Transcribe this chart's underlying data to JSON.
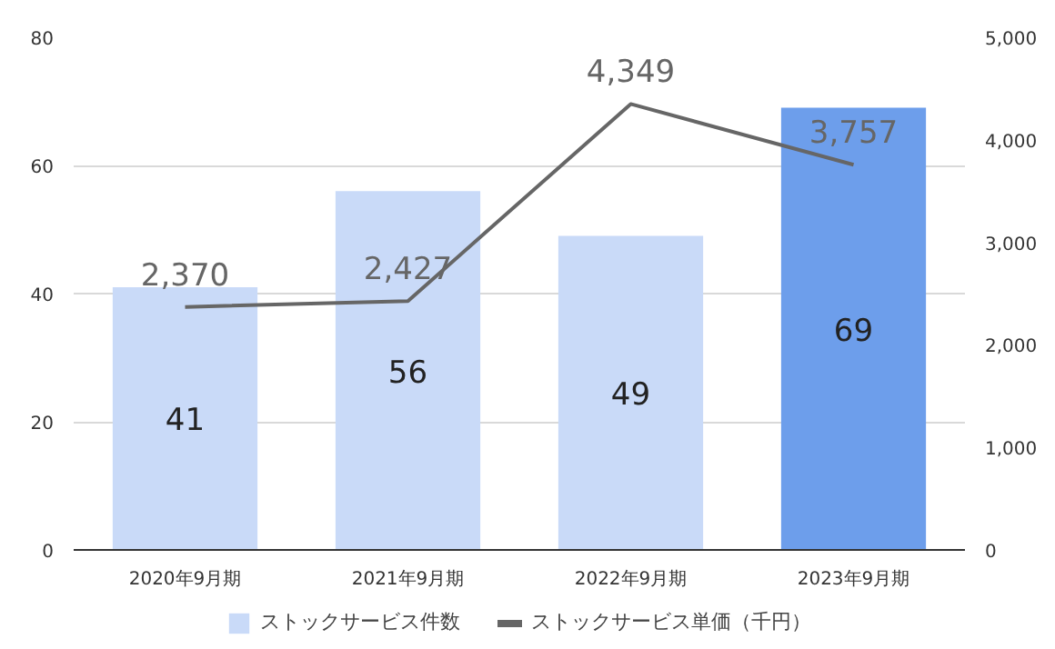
{
  "chart_data": {
    "type": "bar",
    "categories": [
      "2020年9月期",
      "2021年9月期",
      "2022年9月期",
      "2023年9月期"
    ],
    "series": [
      {
        "name": "ストックサービス件数",
        "color": "#c9daf8",
        "colors": [
          "#c9daf8",
          "#c9daf8",
          "#c9daf8",
          "#6d9eeb"
        ],
        "values": [
          41,
          56,
          49,
          69
        ]
      },
      {
        "name": "ストックサービス単価（千円）",
        "type": "line",
        "axis": "y2",
        "color": "#666666",
        "values": [
          2370,
          2427,
          4349,
          3757
        ],
        "value_labels": [
          "2,370",
          "2,427",
          "4,349",
          "3,757"
        ]
      }
    ],
    "ylim": [
      0,
      80
    ],
    "yticks": [
      0,
      20,
      40,
      60,
      80
    ],
    "y2lim": [
      0,
      5000
    ],
    "y2ticks": [
      0,
      {
        "value": 1000,
        "label": "1,000"
      },
      {
        "value": 2000,
        "label": "2,000"
      },
      {
        "value": 3000,
        "label": "3,000"
      },
      {
        "value": 4000,
        "label": "4,000"
      },
      {
        "value": 5000,
        "label": "5,000"
      }
    ],
    "grid": "y",
    "legend": "bottom",
    "data_labels": true,
    "marker": "none",
    "line_style": "solid"
  }
}
